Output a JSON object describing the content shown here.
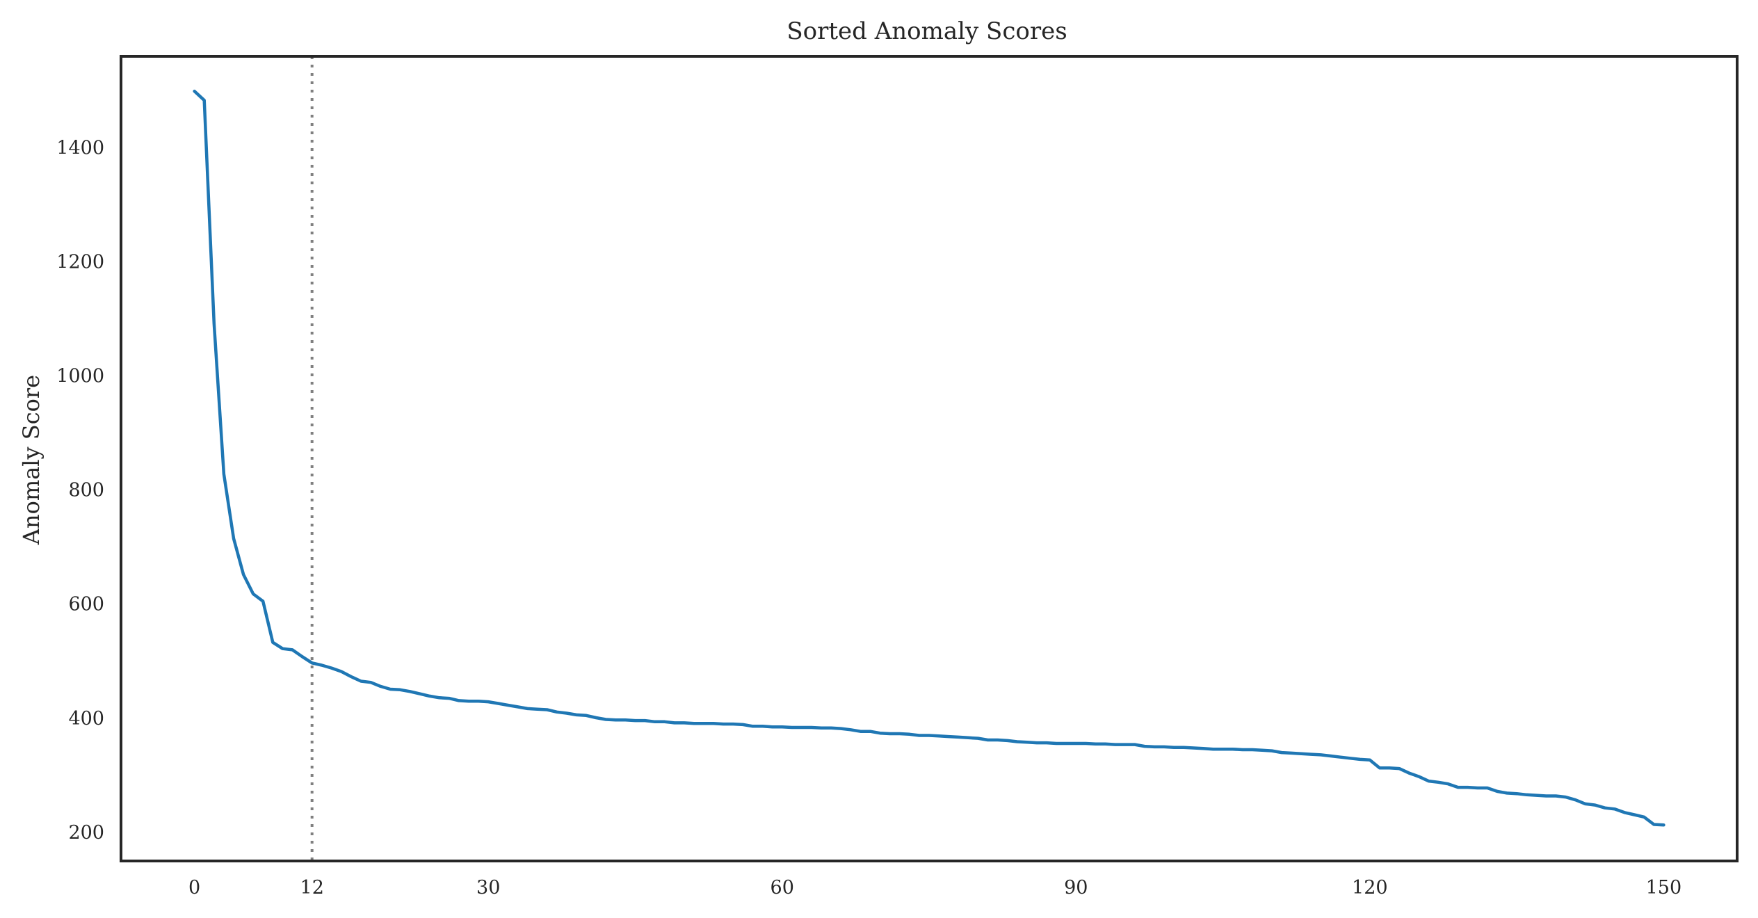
{
  "chart_data": {
    "type": "line",
    "title": "Sorted Anomaly Scores",
    "xlabel": "",
    "ylabel": "Anomaly Score",
    "xlim": [
      -7.5,
      157.5
    ],
    "ylim": [
      150,
      1560
    ],
    "grid": false,
    "legend": "none",
    "xticks": [
      0,
      12,
      30,
      60,
      90,
      120,
      150
    ],
    "yticks": [
      200,
      400,
      600,
      800,
      1000,
      1200,
      1400
    ],
    "reference_line": {
      "orientation": "vertical",
      "x": 12,
      "style": "dotted",
      "color": "#808080"
    },
    "colors": {
      "line": "#1f77b4",
      "frame": "#262626",
      "text": "#262626"
    },
    "series": [
      {
        "x": [
          0,
          1,
          2,
          3,
          4,
          5,
          6,
          7,
          8,
          9,
          10,
          11,
          12,
          13,
          14,
          15,
          16,
          17,
          18,
          19,
          20,
          21,
          22,
          23,
          24,
          25,
          26,
          27,
          28,
          29,
          30,
          31,
          32,
          33,
          34,
          35,
          36,
          37,
          38,
          39,
          40,
          41,
          42,
          43,
          44,
          45,
          46,
          47,
          48,
          49,
          50,
          51,
          52,
          53,
          54,
          55,
          56,
          57,
          58,
          59,
          60,
          61,
          62,
          63,
          64,
          65,
          66,
          67,
          68,
          69,
          70,
          71,
          72,
          73,
          74,
          75,
          76,
          77,
          78,
          79,
          80,
          81,
          82,
          83,
          84,
          85,
          86,
          87,
          88,
          89,
          90,
          91,
          92,
          93,
          94,
          95,
          96,
          97,
          98,
          99,
          100,
          101,
          102,
          103,
          104,
          105,
          106,
          107,
          108,
          109,
          110,
          111,
          112,
          113,
          114,
          115,
          116,
          117,
          118,
          119,
          120,
          121,
          122,
          123,
          124,
          125,
          126,
          127,
          128,
          129,
          130,
          131,
          132,
          133,
          134,
          135,
          136,
          137,
          138,
          139,
          140,
          141,
          142,
          143,
          144,
          145,
          146,
          147,
          148,
          149,
          150
        ],
        "values": [
          1499,
          1483,
          1092,
          828,
          715,
          652,
          618,
          605,
          533,
          522,
          520,
          508,
          497,
          493,
          488,
          482,
          473,
          465,
          463,
          456,
          451,
          450,
          447,
          443,
          439,
          436,
          435,
          431,
          430,
          430,
          429,
          426,
          423,
          420,
          417,
          416,
          415,
          411,
          409,
          406,
          405,
          401,
          398,
          397,
          397,
          396,
          396,
          394,
          394,
          392,
          392,
          391,
          391,
          391,
          390,
          390,
          389,
          386,
          386,
          385,
          385,
          384,
          384,
          384,
          383,
          383,
          382,
          380,
          377,
          377,
          374,
          373,
          373,
          372,
          370,
          370,
          369,
          368,
          367,
          366,
          365,
          362,
          362,
          361,
          359,
          358,
          357,
          357,
          356,
          356,
          356,
          356,
          355,
          355,
          354,
          354,
          354,
          351,
          350,
          350,
          349,
          349,
          348,
          347,
          346,
          346,
          346,
          345,
          345,
          344,
          343,
          340,
          339,
          338,
          337,
          336,
          334,
          332,
          330,
          328,
          327,
          313,
          313,
          312,
          304,
          298,
          290,
          288,
          285,
          279,
          279,
          278,
          278,
          272,
          269,
          268,
          266,
          265,
          264,
          264,
          262,
          257,
          250,
          248,
          243,
          241,
          235,
          231,
          227,
          214,
          213
        ]
      }
    ]
  }
}
